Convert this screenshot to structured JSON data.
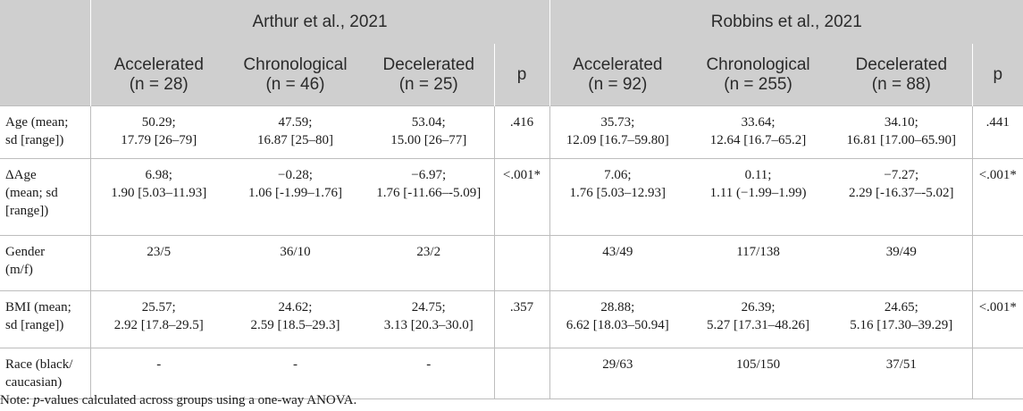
{
  "groups": [
    "Arthur et al., 2021",
    "Robbins et al., 2021"
  ],
  "subheaders": {
    "arthur": [
      {
        "line1": "Accelerated",
        "line2": "(n = 28)"
      },
      {
        "line1": "Chronological",
        "line2": "(n = 46)"
      },
      {
        "line1": "Decelerated",
        "line2": "(n = 25)"
      },
      {
        "line1": "p",
        "line2": ""
      }
    ],
    "robbins": [
      {
        "line1": "Accelerated",
        "line2": "(n = 92)"
      },
      {
        "line1": "Chronological",
        "line2": "(n = 255)"
      },
      {
        "line1": "Decelerated",
        "line2": "(n = 88)"
      },
      {
        "line1": "p",
        "line2": ""
      }
    ]
  },
  "rows": [
    {
      "label": [
        "Age (mean;",
        "sd [range])"
      ],
      "cells": [
        [
          "50.29;",
          "17.79 [26–79]"
        ],
        [
          "47.59;",
          "16.87 [25–80]"
        ],
        [
          "53.04;",
          "15.00 [26–77]"
        ],
        [
          ".416"
        ],
        [
          "35.73;",
          "12.09 [16.7–59.80]"
        ],
        [
          "33.64;",
          "12.64 [16.7–65.2]"
        ],
        [
          "34.10;",
          "16.81 [17.00–65.90]"
        ],
        [
          ".441"
        ]
      ]
    },
    {
      "label": [
        "ΔAge",
        "(mean; sd",
        "[range])"
      ],
      "cells": [
        [
          "6.98;",
          "1.90 [5.03–11.93]"
        ],
        [
          "−0.28;",
          "1.06 [-1.99–1.76]"
        ],
        [
          "−6.97;",
          "1.76 [-11.66–-5.09]"
        ],
        [
          "<.001*"
        ],
        [
          "7.06;",
          "1.76 [5.03–12.93]"
        ],
        [
          "0.11;",
          "1.11 (−1.99–1.99)"
        ],
        [
          "−7.27;",
          "2.29 [-16.37–-5.02]"
        ],
        [
          "<.001*"
        ]
      ]
    },
    {
      "label": [
        "Gender",
        "(m/f)"
      ],
      "cells": [
        [
          "23/5"
        ],
        [
          "36/10"
        ],
        [
          "23/2"
        ],
        [
          ""
        ],
        [
          "43/49"
        ],
        [
          "117/138"
        ],
        [
          "39/49"
        ],
        [
          ""
        ]
      ]
    },
    {
      "label": [
        "BMI (mean;",
        "sd [range])"
      ],
      "cells": [
        [
          "25.57;",
          "2.92 [17.8–29.5]"
        ],
        [
          "24.62;",
          "2.59 [18.5–29.3]"
        ],
        [
          "24.75;",
          "3.13 [20.3–30.0]"
        ],
        [
          ".357"
        ],
        [
          "28.88;",
          "6.62 [18.03–50.94]"
        ],
        [
          "26.39;",
          "5.27 [17.31–48.26]"
        ],
        [
          "24.65;",
          "5.16 [17.30–39.29]"
        ],
        [
          "<.001*"
        ]
      ]
    },
    {
      "label": [
        "Race (black/",
        "caucasian)"
      ],
      "cells": [
        [
          "-"
        ],
        [
          "-"
        ],
        [
          "-"
        ],
        [
          ""
        ],
        [
          "29/63"
        ],
        [
          "105/150"
        ],
        [
          "37/51"
        ],
        [
          ""
        ]
      ]
    }
  ],
  "note": {
    "prefix": "Note: ",
    "italic": "p",
    "rest": "-values calculated across groups using a one-way ANOVA."
  }
}
